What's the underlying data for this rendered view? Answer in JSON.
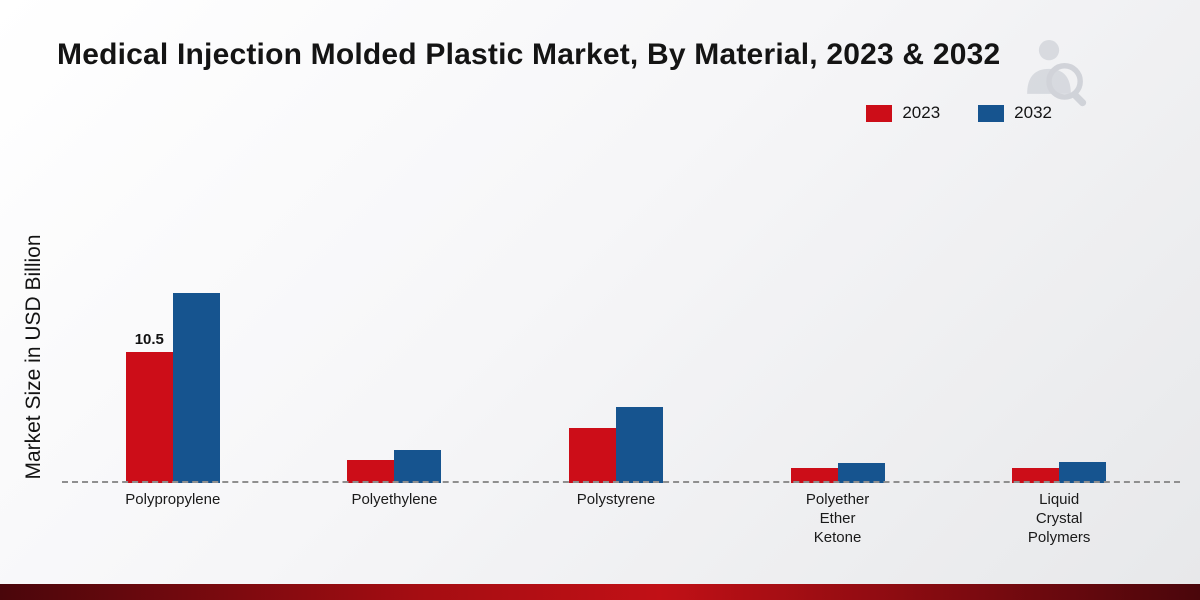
{
  "title": "Medical Injection Molded Plastic Market, By Material, 2023 & 2032",
  "legend": [
    {
      "label": "2023",
      "color": "#cc0d18"
    },
    {
      "label": "2032",
      "color": "#16548f"
    }
  ],
  "chart_data": {
    "type": "bar",
    "title": "Medical Injection Molded Plastic Market, By Material, 2023 & 2032",
    "ylabel": "Market Size in USD Billion",
    "xlabel": "",
    "categories": [
      "Polypropylene",
      "Polyethylene",
      "Polystyrene",
      "Polyether Ether Ketone",
      "Liquid Crystal Polymers"
    ],
    "category_labels": [
      "Polypropylene",
      "Polyethylene",
      "Polystyrene",
      "Polyether\nEther\nKetone",
      "Liquid\nCrystal\nPolymers"
    ],
    "series": [
      {
        "name": "2023",
        "color": "#cc0d18",
        "values": [
          10.5,
          1.8,
          4.4,
          1.2,
          1.2
        ]
      },
      {
        "name": "2032",
        "color": "#16548f",
        "values": [
          15.2,
          2.6,
          6.1,
          1.6,
          1.7
        ]
      }
    ],
    "annotations": [
      {
        "series": "2023",
        "category": "Polypropylene",
        "text": "10.5"
      }
    ],
    "ylim": [
      0,
      16
    ],
    "grid": false,
    "legend_position": "top-right",
    "baseline_style": "dashed"
  }
}
